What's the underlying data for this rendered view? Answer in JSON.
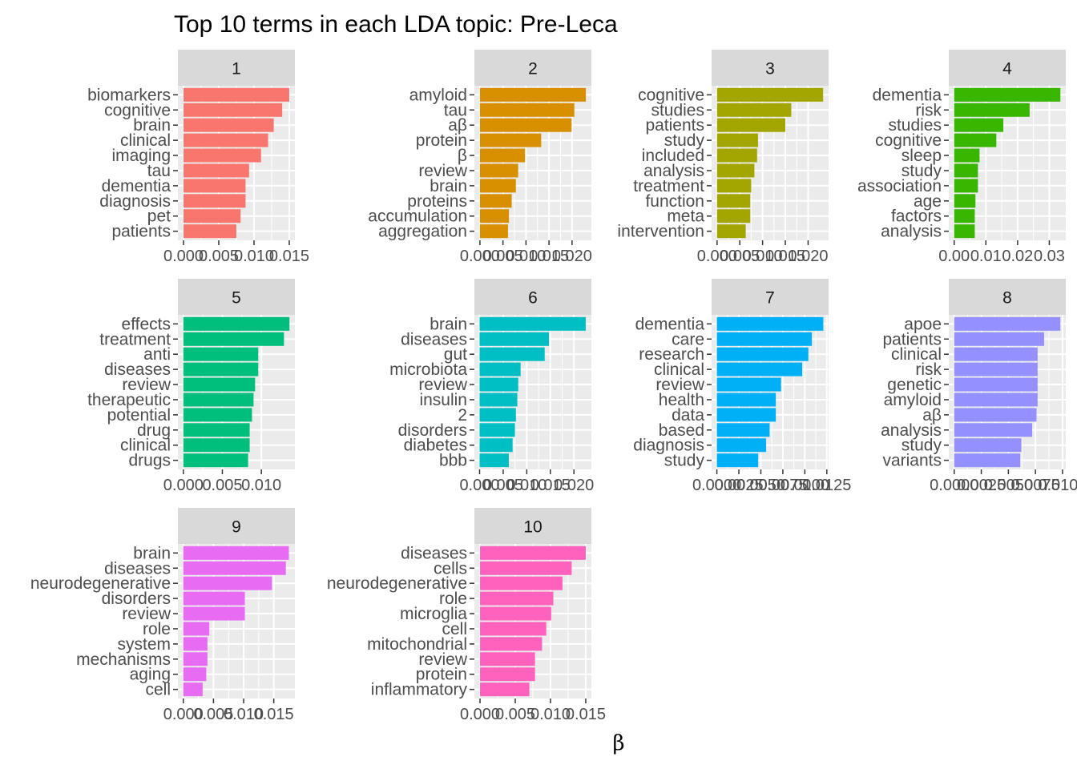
{
  "chart_data": {
    "type": "bar",
    "title": "Top 10 terms in each LDA topic: Pre-Leca",
    "xlabel": "β",
    "ylabel": "",
    "orientation": "horizontal",
    "panels": [
      {
        "label": "1",
        "color": "#F8766D",
        "terms": [
          "biomarkers",
          "cognitive",
          "brain",
          "clinical",
          "imaging",
          "tau",
          "dementia",
          "diagnosis",
          "pet",
          "patients"
        ],
        "values": [
          0.015,
          0.014,
          0.0128,
          0.012,
          0.011,
          0.0093,
          0.0088,
          0.0088,
          0.0081,
          0.0075
        ],
        "xlim": [
          -0.0008,
          0.0158
        ],
        "ticks": [
          0,
          0.005,
          0.01,
          0.015
        ],
        "tick_labels": [
          "0.000",
          "0.005",
          "0.010",
          "0.015"
        ]
      },
      {
        "label": "2",
        "color": "#D89000",
        "terms": [
          "amyloid",
          "tau",
          "aβ",
          "protein",
          "β",
          "review",
          "brain",
          "proteins",
          "accumulation",
          "aggregation"
        ],
        "values": [
          0.023,
          0.0205,
          0.0199,
          0.0133,
          0.0098,
          0.0083,
          0.0078,
          0.0069,
          0.0063,
          0.0061
        ],
        "xlim": [
          -0.0012,
          0.0242
        ],
        "ticks": [
          0,
          0.005,
          0.01,
          0.015,
          0.02
        ],
        "tick_labels": [
          "0.000",
          "0.005",
          "0.010",
          "0.015",
          "0.020"
        ]
      },
      {
        "label": "3",
        "color": "#A3A500",
        "terms": [
          "cognitive",
          "studies",
          "patients",
          "study",
          "included",
          "analysis",
          "treatment",
          "function",
          "meta",
          "intervention"
        ],
        "values": [
          0.0233,
          0.0163,
          0.015,
          0.009,
          0.0088,
          0.0082,
          0.0075,
          0.0073,
          0.0073,
          0.0063
        ],
        "xlim": [
          -0.0012,
          0.0245
        ],
        "ticks": [
          0,
          0.005,
          0.01,
          0.015,
          0.02
        ],
        "tick_labels": [
          "0.000",
          "0.005",
          "0.010",
          "0.015",
          "0.020"
        ]
      },
      {
        "label": "4",
        "color": "#39B600",
        "terms": [
          "dementia",
          "risk",
          "studies",
          "cognitive",
          "sleep",
          "study",
          "association",
          "age",
          "factors",
          "analysis"
        ],
        "values": [
          0.0335,
          0.0238,
          0.0155,
          0.0133,
          0.008,
          0.0075,
          0.0075,
          0.0067,
          0.0065,
          0.0065
        ],
        "xlim": [
          -0.0017,
          0.0352
        ],
        "ticks": [
          0,
          0.01,
          0.02,
          0.03
        ],
        "tick_labels": [
          "0.00",
          "0.01",
          "0.02",
          "0.03"
        ]
      },
      {
        "label": "5",
        "color": "#00BF7D",
        "terms": [
          "effects",
          "treatment",
          "anti",
          "diseases",
          "review",
          "therapeutic",
          "potential",
          "drug",
          "clinical",
          "drugs"
        ],
        "values": [
          0.0136,
          0.0129,
          0.0096,
          0.0096,
          0.0092,
          0.009,
          0.0088,
          0.0085,
          0.0085,
          0.0083
        ],
        "xlim": [
          -0.0007,
          0.0143
        ],
        "ticks": [
          0,
          0.005,
          0.01
        ],
        "tick_labels": [
          "0.000",
          "0.005",
          "0.010"
        ]
      },
      {
        "label": "6",
        "color": "#00BFC4",
        "terms": [
          "brain",
          "diseases",
          "gut",
          "microbiota",
          "review",
          "insulin",
          "2",
          "disorders",
          "diabetes",
          "bbb"
        ],
        "values": [
          0.0225,
          0.0147,
          0.0138,
          0.0087,
          0.0082,
          0.008,
          0.0077,
          0.0075,
          0.007,
          0.0062
        ],
        "xlim": [
          -0.0011,
          0.0237
        ],
        "ticks": [
          0,
          0.005,
          0.01,
          0.015,
          0.02
        ],
        "tick_labels": [
          "0.000",
          "0.005",
          "0.010",
          "0.015",
          "0.020"
        ]
      },
      {
        "label": "7",
        "color": "#00B0F6",
        "terms": [
          "dementia",
          "care",
          "research",
          "clinical",
          "review",
          "health",
          "data",
          "based",
          "diagnosis",
          "study"
        ],
        "values": [
          0.0121,
          0.0108,
          0.0104,
          0.0097,
          0.0073,
          0.0067,
          0.0067,
          0.006,
          0.0056,
          0.0047
        ],
        "xlim": [
          -0.0006,
          0.0127
        ],
        "ticks": [
          0,
          0.0025,
          0.005,
          0.0075,
          0.01,
          0.0125
        ],
        "tick_labels": [
          "0.0000",
          "0.0025",
          "0.0050",
          "0.0075",
          "0.0100",
          "0.0125"
        ]
      },
      {
        "label": "8",
        "color": "#9590FF",
        "terms": [
          "apoe",
          "patients",
          "clinical",
          "risk",
          "genetic",
          "amyloid",
          "aβ",
          "analysis",
          "study",
          "variants"
        ],
        "values": [
          0.0098,
          0.0083,
          0.0077,
          0.0077,
          0.0077,
          0.0077,
          0.0076,
          0.0072,
          0.0062,
          0.0061
        ],
        "xlim": [
          -0.0005,
          0.0103
        ],
        "ticks": [
          0,
          0.0025,
          0.005,
          0.0075,
          0.01
        ],
        "tick_labels": [
          "0.0000",
          "0.0025",
          "0.0050",
          "0.0075",
          "0.0100"
        ]
      },
      {
        "label": "9",
        "color": "#E76BF3",
        "terms": [
          "brain",
          "diseases",
          "neurodegenerative",
          "disorders",
          "review",
          "role",
          "system",
          "mechanisms",
          "aging",
          "cell"
        ],
        "values": [
          0.0175,
          0.017,
          0.0147,
          0.0102,
          0.0102,
          0.0043,
          0.004,
          0.004,
          0.0038,
          0.0032
        ],
        "xlim": [
          -0.0009,
          0.0185
        ],
        "ticks": [
          0,
          0.005,
          0.01,
          0.015
        ],
        "tick_labels": [
          "0.000",
          "0.005",
          "0.010",
          "0.015"
        ]
      },
      {
        "label": "10",
        "color": "#FF62BC",
        "terms": [
          "diseases",
          "cells",
          "neurodegenerative",
          "role",
          "microglia",
          "cell",
          "mitochondrial",
          "review",
          "protein",
          "inflammatory"
        ],
        "values": [
          0.015,
          0.013,
          0.0117,
          0.0104,
          0.0101,
          0.0094,
          0.0088,
          0.0078,
          0.0078,
          0.007
        ],
        "xlim": [
          -0.0008,
          0.0158
        ],
        "ticks": [
          0,
          0.005,
          0.01,
          0.015
        ],
        "tick_labels": [
          "0.000",
          "0.005",
          "0.010",
          "0.015"
        ]
      }
    ],
    "grid": true,
    "legend": "none"
  }
}
